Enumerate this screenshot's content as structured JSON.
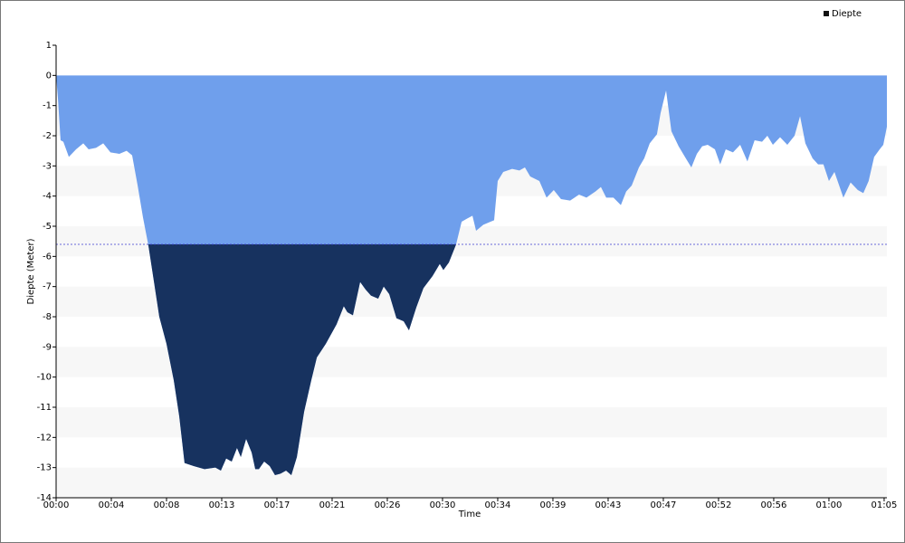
{
  "chart_data": {
    "type": "area",
    "x_label": "Time",
    "y_label": "Diepte (Meter)",
    "legend": "top-right",
    "band_color": "#f7f7f7",
    "reference_line": -5.6,
    "reference_color": "#3a3ad0",
    "series": [
      {
        "name": "Diepte",
        "color": "#6f9fec",
        "below_color": "#17325f",
        "legend_color": "#111111",
        "x": [
          0,
          9,
          21,
          34,
          60,
          94,
          128,
          153,
          188,
          222,
          256,
          298,
          332,
          358,
          384,
          409,
          435,
          460,
          486,
          520,
          554,
          580,
          605,
          648,
          699,
          750,
          776,
          801,
          827,
          852,
          870,
          895,
          921,
          938,
          955,
          980,
          1006,
          1031,
          1057,
          1083,
          1108,
          1134,
          1168,
          1202,
          1228,
          1270,
          1321,
          1355,
          1372,
          1398,
          1432,
          1458,
          1483,
          1517,
          1543,
          1569,
          1603,
          1637,
          1662,
          1696,
          1730,
          1773,
          1807,
          1824,
          1850,
          1884,
          1910,
          1935,
          1961,
          1978,
          2012,
          2046,
          2063,
          2080,
          2106,
          2148,
          2182,
          2208,
          2233,
          2276,
          2310,
          2344,
          2378,
          2421,
          2463,
          2498,
          2540,
          2566,
          2591,
          2625,
          2660,
          2685,
          2711,
          2745,
          2770,
          2796,
          2830,
          2847,
          2873,
          2898,
          2932,
          2966,
          2992,
          3018,
          3043,
          3069,
          3103,
          3128,
          3154,
          3188,
          3222,
          3256,
          3290,
          3325,
          3350,
          3376,
          3410,
          3444,
          3478,
          3504,
          3529,
          3563,
          3589,
          3614,
          3640,
          3666,
          3708,
          3742,
          3776,
          3802,
          3827,
          3853,
          3879,
          3896,
          3913
        ],
        "values": [
          0,
          -0.8,
          -2.15,
          -2.2,
          -2.7,
          -2.45,
          -2.25,
          -2.45,
          -2.4,
          -2.25,
          -2.55,
          -2.6,
          -2.5,
          -2.65,
          -3.65,
          -4.7,
          -5.65,
          -6.8,
          -8.0,
          -8.9,
          -10.1,
          -11.3,
          -12.85,
          -12.95,
          -13.05,
          -13.0,
          -13.1,
          -12.7,
          -12.8,
          -12.35,
          -12.65,
          -12.05,
          -12.5,
          -13.05,
          -13.05,
          -12.8,
          -12.95,
          -13.25,
          -13.2,
          -13.1,
          -13.25,
          -12.65,
          -11.15,
          -10.1,
          -9.35,
          -8.9,
          -8.25,
          -7.65,
          -7.85,
          -7.95,
          -6.85,
          -7.1,
          -7.3,
          -7.4,
          -7.0,
          -7.25,
          -8.05,
          -8.15,
          -8.45,
          -7.7,
          -7.05,
          -6.65,
          -6.25,
          -6.45,
          -6.2,
          -5.6,
          -4.85,
          -4.75,
          -4.65,
          -5.15,
          -4.95,
          -4.85,
          -4.8,
          -3.5,
          -3.2,
          -3.1,
          -3.15,
          -3.05,
          -3.35,
          -3.5,
          -4.05,
          -3.8,
          -4.1,
          -4.15,
          -3.95,
          -4.05,
          -3.85,
          -3.7,
          -4.05,
          -4.05,
          -4.3,
          -3.85,
          -3.65,
          -3.05,
          -2.75,
          -2.25,
          -1.95,
          -1.25,
          -0.5,
          -1.85,
          -2.35,
          -2.75,
          -3.05,
          -2.6,
          -2.35,
          -2.3,
          -2.45,
          -2.95,
          -2.45,
          -2.55,
          -2.3,
          -2.85,
          -2.15,
          -2.2,
          -2.0,
          -2.3,
          -2.05,
          -2.3,
          -2.0,
          -1.35,
          -2.25,
          -2.75,
          -2.95,
          -2.95,
          -3.5,
          -3.2,
          -4.05,
          -3.55,
          -3.8,
          -3.9,
          -3.5,
          -2.7,
          -2.45,
          -2.3,
          -1.7
        ]
      }
    ],
    "xlim": [
      0,
      3913
    ],
    "xticks": [
      {
        "value": 0,
        "label": "00:00"
      },
      {
        "value": 260,
        "label": "00:04"
      },
      {
        "value": 520,
        "label": "00:08"
      },
      {
        "value": 780,
        "label": "00:13"
      },
      {
        "value": 1040,
        "label": "00:17"
      },
      {
        "value": 1300,
        "label": "00:21"
      },
      {
        "value": 1560,
        "label": "00:26"
      },
      {
        "value": 1820,
        "label": "00:30"
      },
      {
        "value": 2080,
        "label": "00:34"
      },
      {
        "value": 2340,
        "label": "00:39"
      },
      {
        "value": 2600,
        "label": "00:43"
      },
      {
        "value": 2860,
        "label": "00:47"
      },
      {
        "value": 3120,
        "label": "00:52"
      },
      {
        "value": 3380,
        "label": "00:56"
      },
      {
        "value": 3640,
        "label": "01:00"
      },
      {
        "value": 3900,
        "label": "01:05"
      }
    ],
    "ylim": [
      -14,
      1
    ],
    "yticks": [
      1,
      0,
      -1,
      -2,
      -3,
      -4,
      -5,
      -6,
      -7,
      -8,
      -9,
      -10,
      -11,
      -12,
      -13,
      -14
    ]
  }
}
